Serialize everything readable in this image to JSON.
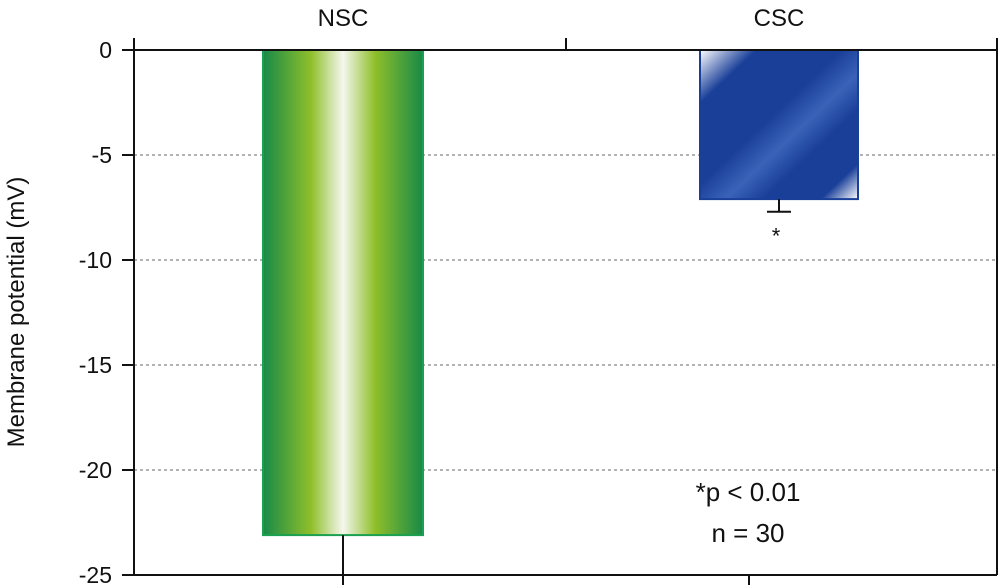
{
  "chart_data": {
    "type": "bar",
    "categories": [
      "NSC",
      "CSC"
    ],
    "values": [
      -23.1,
      -7.1
    ],
    "errors": [
      1.9,
      0.6
    ],
    "ylabel": "Membrane potential (mV)",
    "ylim": [
      -25,
      0
    ],
    "yticks": [
      0,
      -5,
      -10,
      -15,
      -20,
      -25
    ],
    "ytick_labels": [
      "0",
      "-5",
      "-10",
      "-15",
      "-20",
      "-25"
    ],
    "grid": true,
    "significance": [
      "",
      "*"
    ],
    "annotations": [
      "*p < 0.01",
      "n = 30"
    ],
    "colors": {
      "nsc_dark": "#178a48",
      "nsc_mid": "#8fbf2a",
      "nsc_light": "#f4f7ee",
      "csc_dark": "#1a3f99",
      "csc_light": "#ffffff",
      "grid": "#999999",
      "axis": "#111111"
    }
  }
}
